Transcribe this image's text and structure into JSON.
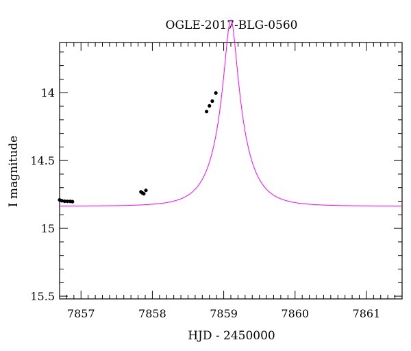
{
  "chart_data": {
    "type": "scatter",
    "title": "OGLE-2017-BLG-0560",
    "xlabel": "HJD - 2450000",
    "ylabel": "I magnitude",
    "xlim": [
      7856.7,
      7861.5
    ],
    "ylim": [
      15.52,
      13.63
    ],
    "y_inverted": true,
    "x_ticks": [
      7857,
      7858,
      7859,
      7860,
      7861
    ],
    "x_tick_labels": [
      "7857",
      "7858",
      "7859",
      "7860",
      "7861"
    ],
    "y_ticks": [
      14,
      14.5,
      15,
      15.5
    ],
    "y_tick_labels": [
      "14",
      "14.5",
      "15",
      "15.5"
    ],
    "x_minor_step": 0.1,
    "y_minor_step": 0.1,
    "grid": false,
    "series": [
      {
        "type": "line",
        "color": "#ff00ff",
        "model": {
          "t0": 7859.1,
          "tE": 0.375,
          "u0": 0.22,
          "base_mag": 14.836,
          "fs": 0.7
        }
      },
      {
        "type": "scatter",
        "color": "#000000",
        "x": [
          7856.7,
          7856.73,
          7856.77,
          7856.81,
          7856.85,
          7856.88,
          7857.84,
          7857.86,
          7857.88,
          7857.91,
          7858.76,
          7858.8,
          7858.84,
          7858.89
        ],
        "y": [
          14.79,
          14.796,
          14.8,
          14.801,
          14.801,
          14.803,
          14.731,
          14.739,
          14.745,
          14.72,
          14.139,
          14.097,
          14.062,
          14.002
        ]
      }
    ]
  }
}
